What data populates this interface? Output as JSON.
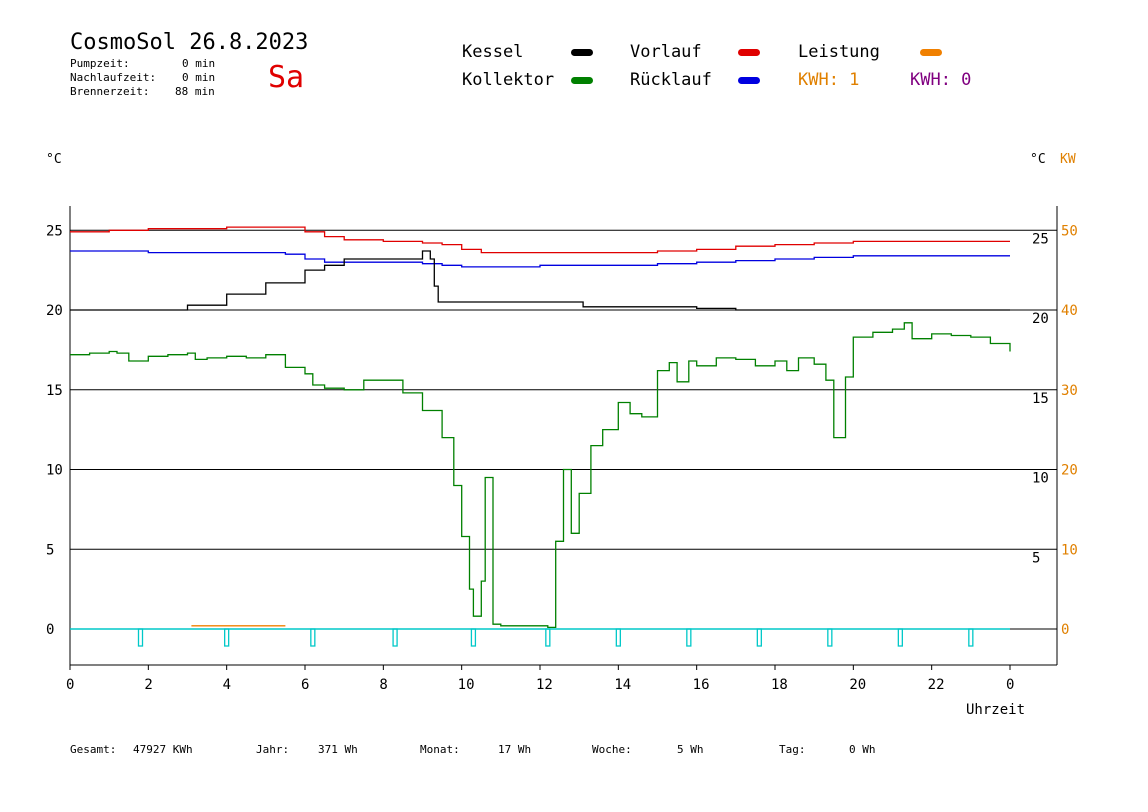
{
  "header": {
    "title": "CosmoSol 26.8.2023",
    "weekday": "Sa",
    "pump_label": "Pumpzeit:",
    "pump_value": "0 min",
    "after_label": "Nachlaufzeit:",
    "after_value": "0 min",
    "burner_label": "Brennerzeit:",
    "burner_value": "88 min"
  },
  "legend": {
    "kessel": "Kessel",
    "vorlauf": "Vorlauf",
    "leistung": "Leistung",
    "kollektor": "Kollektor",
    "ruecklauf": "Rücklauf",
    "kwh1": "KWH: 1",
    "kwh2": "KWH: 0"
  },
  "colors": {
    "kessel": "#000000",
    "vorlauf": "#e00000",
    "leistung": "#f08000",
    "kollektor": "#008000",
    "ruecklauf": "#0000e0",
    "kwh1": "#e08000",
    "kwh2": "#800080",
    "pump": "#00c8c8"
  },
  "axes": {
    "left_unit": "°C",
    "right_unit_c": "°C",
    "right_unit_kw": "KW",
    "xlabel": "Uhrzeit"
  },
  "footer": {
    "gesamt_label": "Gesamt:",
    "gesamt_value": "47927 KWh",
    "jahr_label": "Jahr:",
    "jahr_value": "371 Wh",
    "monat_label": "Monat:",
    "monat_value": "17 Wh",
    "woche_label": "Woche:",
    "woche_value": "5 Wh",
    "tag_label": "Tag:",
    "tag_value": "0 Wh"
  },
  "chart_data": {
    "type": "line",
    "xlabel": "Uhrzeit",
    "ylabel": "°C",
    "xlim": [
      0,
      24
    ],
    "ylim": [
      -2,
      26.5
    ],
    "x_ticks": [
      "0",
      "2",
      "4",
      "6",
      "8",
      "10",
      "12",
      "14",
      "16",
      "18",
      "20",
      "22",
      "0"
    ],
    "y_ticks_left": [
      "0",
      "5",
      "10",
      "15",
      "20",
      "25"
    ],
    "y_ticks_right_c": [
      "5",
      "10",
      "15",
      "20",
      "25"
    ],
    "y_ticks_right_kw": [
      "0",
      "10",
      "20",
      "30",
      "40",
      "50"
    ],
    "grid": true,
    "series": [
      {
        "name": "Vorlauf",
        "color": "#e00000",
        "x": [
          0,
          1,
          2,
          3,
          4,
          5,
          5.3,
          6,
          6.5,
          7,
          8,
          9,
          9.5,
          10,
          10.5,
          11,
          12,
          13,
          14,
          15,
          16,
          17,
          18,
          19,
          20,
          21,
          22,
          23,
          24
        ],
        "y": [
          24.9,
          25,
          25.1,
          25.1,
          25.2,
          25.2,
          25.2,
          24.9,
          24.6,
          24.4,
          24.3,
          24.2,
          24.1,
          23.8,
          23.6,
          23.6,
          23.6,
          23.6,
          23.6,
          23.7,
          23.8,
          24,
          24.1,
          24.2,
          24.3,
          24.3,
          24.3,
          24.3,
          24.3
        ]
      },
      {
        "name": "Rücklauf",
        "color": "#0000e0",
        "x": [
          0,
          1,
          2,
          3,
          4,
          5,
          5.5,
          6,
          6.5,
          7,
          8,
          9,
          9.5,
          10,
          11,
          12,
          13,
          14,
          15,
          16,
          17,
          18,
          19,
          20,
          21,
          22,
          23,
          24
        ],
        "y": [
          23.7,
          23.7,
          23.6,
          23.6,
          23.6,
          23.6,
          23.5,
          23.2,
          23,
          23,
          23,
          22.9,
          22.8,
          22.7,
          22.7,
          22.8,
          22.8,
          22.8,
          22.9,
          23,
          23.1,
          23.2,
          23.3,
          23.4,
          23.4,
          23.4,
          23.4,
          23.4
        ]
      },
      {
        "name": "Kessel",
        "color": "#000000",
        "x": [
          0,
          2.4,
          3,
          4,
          5,
          6,
          6.5,
          7,
          7.5,
          8,
          9,
          9.2,
          9.3,
          9.4,
          10,
          11,
          12,
          13,
          13.1,
          14,
          15,
          16,
          16.5,
          17,
          18,
          19,
          20,
          21,
          22,
          23,
          24
        ],
        "y": [
          20,
          20,
          20.3,
          21,
          21.7,
          22.5,
          22.8,
          23.2,
          23.2,
          23.2,
          23.7,
          23.2,
          21.5,
          20.5,
          20.5,
          20.5,
          20.5,
          20.5,
          20.2,
          20.2,
          20.2,
          20.1,
          20.1,
          20,
          20,
          20,
          20,
          20,
          20,
          20,
          20
        ]
      },
      {
        "name": "Kollektor",
        "color": "#008000",
        "x": [
          0,
          0.5,
          1,
          1.2,
          1.5,
          2,
          2.5,
          3,
          3.2,
          3.5,
          4,
          4.5,
          5,
          5.5,
          6,
          6.2,
          6.5,
          7,
          7.5,
          8,
          8.5,
          9,
          9.5,
          9.8,
          10,
          10.2,
          10.3,
          10.5,
          10.6,
          10.8,
          11,
          11.5,
          12,
          12.2,
          12.4,
          12.6,
          12.8,
          13,
          13.3,
          13.6,
          14,
          14.3,
          14.6,
          15,
          15.3,
          15.5,
          15.8,
          16,
          16.5,
          17,
          17.5,
          18,
          18.3,
          18.6,
          19,
          19.3,
          19.5,
          19.8,
          20,
          20.5,
          21,
          21.3,
          21.5,
          22,
          22.5,
          23,
          23.5,
          24
        ],
        "y": [
          17.2,
          17.3,
          17.4,
          17.3,
          16.8,
          17.1,
          17.2,
          17.3,
          16.9,
          17,
          17.1,
          17,
          17.2,
          16.4,
          16,
          15.3,
          15.1,
          15,
          15.6,
          15.6,
          14.8,
          13.7,
          12,
          9,
          5.8,
          2.5,
          0.8,
          3,
          9.5,
          0.3,
          0.2,
          0.2,
          0.2,
          0.1,
          5.5,
          10,
          6,
          8.5,
          11.5,
          12.5,
          14.2,
          13.5,
          13.3,
          16.2,
          16.7,
          15.5,
          16.8,
          16.5,
          17,
          16.9,
          16.5,
          16.8,
          16.2,
          17,
          16.6,
          15.6,
          12,
          15.8,
          18.3,
          18.6,
          18.8,
          19.2,
          18.2,
          18.5,
          18.4,
          18.3,
          17.9,
          17.4
        ]
      },
      {
        "name": "Leistung",
        "color": "#f08000",
        "x": [
          3.1,
          5.5
        ],
        "y": [
          0.2,
          0.2
        ]
      }
    ],
    "pump_pulses_x": [
      1.8,
      4.0,
      6.2,
      8.3,
      10.3,
      12.2,
      14.0,
      15.8,
      17.6,
      19.4,
      21.2,
      23.0
    ]
  }
}
